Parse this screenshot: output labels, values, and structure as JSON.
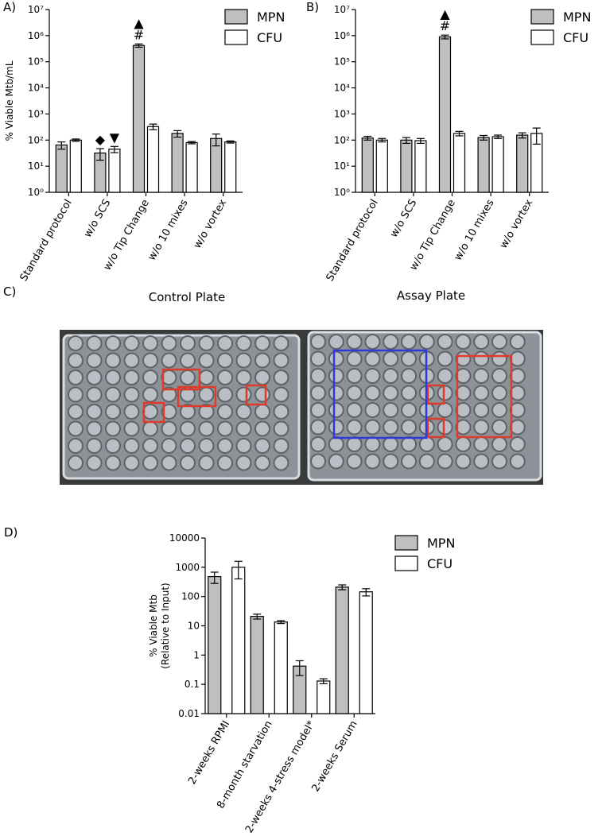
{
  "chart_data": [
    {
      "type": "bar",
      "label": "A)",
      "ylabel": [
        "% Viable Mtb/mL"
      ],
      "log_y": true,
      "legend": "top-right",
      "categories": [
        "Standard protocol",
        "w/o SCS",
        "w/o Tip Change",
        "w/o 10 mixes",
        "w/o vortex"
      ],
      "ylim": [
        1,
        10000000
      ],
      "yticks": [
        {
          "value": 1,
          "label": "10⁰"
        },
        {
          "value": 10,
          "label": "10¹"
        },
        {
          "value": 100,
          "label": "10²"
        },
        {
          "value": 1000,
          "label": "10³"
        },
        {
          "value": 10000,
          "label": "10⁴"
        },
        {
          "value": 100000,
          "label": "10⁵"
        },
        {
          "value": 1000000,
          "label": "10⁶"
        },
        {
          "value": 10000000,
          "label": "10⁷"
        }
      ],
      "series": [
        {
          "name": "MPN",
          "color": "#bfbfbf",
          "values": [
            65,
            32,
            420000,
            180,
            115
          ],
          "errors": [
            20,
            15,
            60000,
            50,
            55
          ],
          "annotations": [
            null,
            [
              "◆"
            ],
            [
              "▲",
              "#"
            ],
            null,
            null
          ]
        },
        {
          "name": "CFU",
          "color": "#ffffff",
          "values": [
            100,
            45,
            330,
            80,
            85
          ],
          "errors": [
            10,
            12,
            80,
            8,
            8
          ],
          "annotations": [
            null,
            [
              "▼"
            ],
            null,
            null,
            null
          ]
        }
      ]
    },
    {
      "type": "bar",
      "label": "B)",
      "log_y": true,
      "legend": "top-right",
      "categories": [
        "Standard protocol",
        "w/o SCS",
        "w/o Tip Change",
        "w/o 10 mixes",
        "w/o vortex"
      ],
      "ylim": [
        1,
        10000000
      ],
      "yticks": [
        {
          "value": 1,
          "label": "10⁰"
        },
        {
          "value": 10,
          "label": "10¹"
        },
        {
          "value": 100,
          "label": "10²"
        },
        {
          "value": 1000,
          "label": "10³"
        },
        {
          "value": 10000,
          "label": "10⁴"
        },
        {
          "value": 100000,
          "label": "10⁵"
        },
        {
          "value": 1000000,
          "label": "10⁶"
        },
        {
          "value": 10000000,
          "label": "10⁷"
        }
      ],
      "series": [
        {
          "name": "MPN",
          "color": "#bfbfbf",
          "values": [
            120,
            100,
            900000,
            125,
            155
          ],
          "errors": [
            20,
            25,
            150000,
            25,
            35
          ],
          "annotations": [
            null,
            null,
            [
              "▲",
              "#"
            ],
            null,
            null
          ]
        },
        {
          "name": "CFU",
          "color": "#ffffff",
          "values": [
            100,
            95,
            180,
            135,
            180
          ],
          "errors": [
            15,
            20,
            35,
            20,
            110
          ]
        }
      ]
    },
    {
      "type": "bar",
      "label": "D)",
      "ylabel": [
        "% Viable Mtb",
        "(Relative to Input)"
      ],
      "log_y": true,
      "legend": "top-right",
      "categories": [
        "2-weeks RPMI",
        "8-month starvation",
        "2-weeks 4-stress model*",
        "2-weeks Serum"
      ],
      "ylim": [
        0.01,
        10000
      ],
      "yticks": [
        0.01,
        0.1,
        1,
        10,
        100,
        1000,
        10000
      ],
      "series": [
        {
          "name": "MPN",
          "color": "#bfbfbf",
          "values": [
            480,
            21,
            0.42,
            210
          ],
          "errors": [
            200,
            4,
            0.22,
            40
          ]
        },
        {
          "name": "CFU",
          "color": "#ffffff",
          "values": [
            1000,
            13.5,
            0.13,
            145
          ],
          "errors": [
            600,
            1.5,
            0.025,
            40
          ]
        }
      ]
    }
  ],
  "panel_c": {
    "label": "C)",
    "titles": [
      "Control Plate",
      "Assay Plate"
    ]
  }
}
